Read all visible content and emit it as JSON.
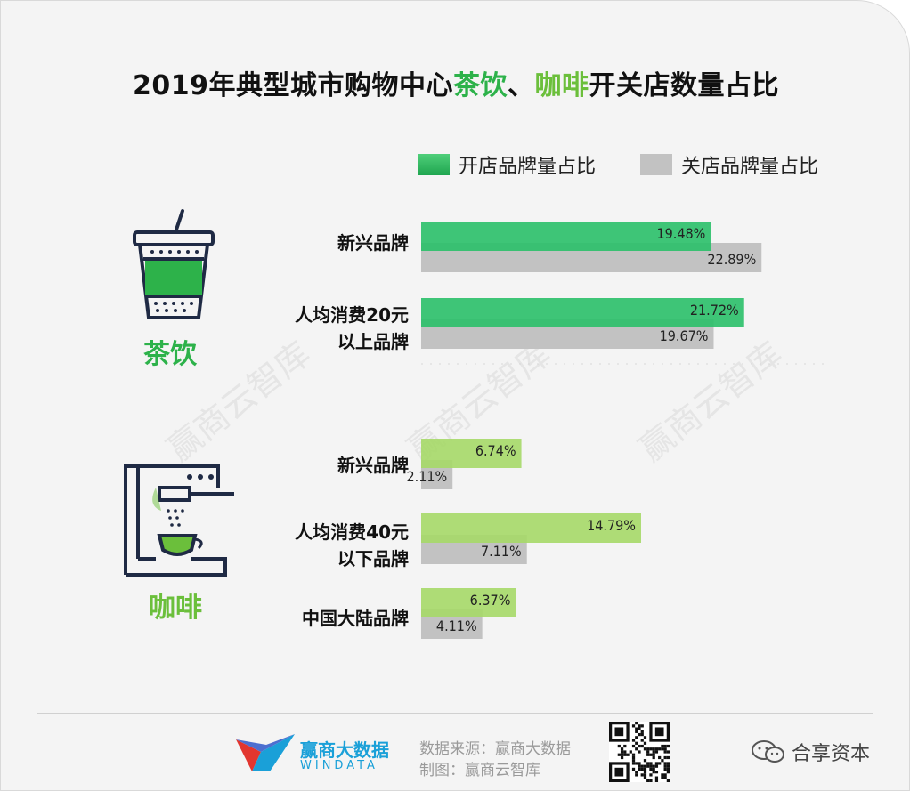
{
  "title": {
    "part1": "2019年典型城市购物中心",
    "tea": "茶饮",
    "sep": "、",
    "coffee": "咖啡",
    "part2": "开关店数量占比"
  },
  "legend": {
    "open": "开店品牌量占比",
    "close": "关店品牌量占比"
  },
  "colors": {
    "tea_open": "#2ec06b",
    "coffee_open": "#a7d96a",
    "close": "#c2c2c2",
    "tea_text": "#2db24a",
    "coffee_text": "#6bbf3b"
  },
  "sections": {
    "tea": "茶饮",
    "coffee": "咖啡"
  },
  "categories": [
    {
      "line1": "新兴品牌",
      "line2": ""
    },
    {
      "line1": "人均消费20元",
      "line2": "以上品牌"
    },
    {
      "line1": "新兴品牌",
      "line2": ""
    },
    {
      "line1": "人均消费40元",
      "line2": "以下品牌"
    },
    {
      "line1": "中国大陆品牌",
      "line2": ""
    }
  ],
  "chart_data": {
    "type": "bar",
    "orientation": "horizontal",
    "title": "2019年典型城市购物中心茶饮、咖啡开关店数量占比",
    "groups": [
      "茶饮",
      "茶饮",
      "咖啡",
      "咖啡",
      "咖啡"
    ],
    "categories": [
      "新兴品牌",
      "人均消费20元以上品牌",
      "新兴品牌",
      "人均消费40元以下品牌",
      "中国大陆品牌"
    ],
    "series": [
      {
        "name": "开店品牌量占比",
        "values": [
          19.48,
          21.72,
          6.74,
          14.79,
          6.37
        ]
      },
      {
        "name": "关店品牌量占比",
        "values": [
          22.89,
          19.67,
          2.11,
          7.11,
          4.11
        ]
      }
    ],
    "value_labels": {
      "open": [
        "19.48%",
        "21.72%",
        "6.74%",
        "14.79%",
        "6.37%"
      ],
      "close": [
        "22.89%",
        "19.67%",
        "2.11%",
        "7.11%",
        "4.11%"
      ]
    },
    "legend_position": "top-right",
    "grid": false
  },
  "watermark": "赢商云智库",
  "footer": {
    "brand_cn": "赢商大数据",
    "brand_en": "WINDATA",
    "source": "数据来源：赢商大数据",
    "made_by": "制图：赢商云智库",
    "share": "合享资本"
  }
}
